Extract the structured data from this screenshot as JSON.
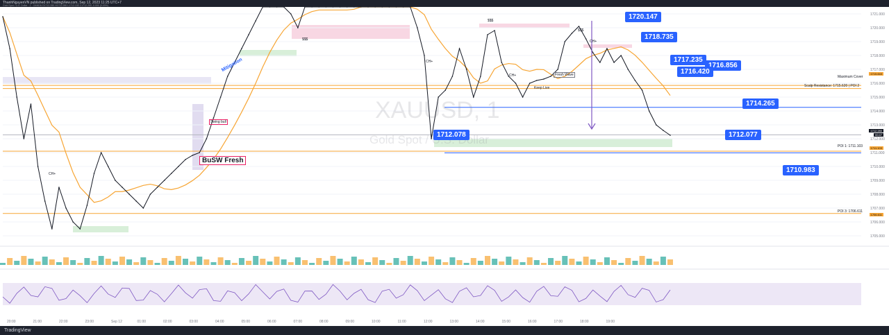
{
  "header": {
    "title": "ThanhNguyenVN published on TradingView.com, Sep 12, 2023 11:25 UTC+7",
    "symbol_line": "Gold Spot / U.S. Dollar · 1 · OANDA  O1712.280  H1712.280  L1712.150  C1712.250  -0.000 (0.00%)"
  },
  "watermark": {
    "symbol": "XAUUSD, 1",
    "name": "Gold Spot / U.S. Dollar"
  },
  "footer": {
    "brand": "TradingView"
  },
  "price_callouts": [
    {
      "label": "1720.147",
      "value": 1720.147
    },
    {
      "label": "1718.735",
      "value": 1718.735
    },
    {
      "label": "1717.235",
      "value": 1717.235
    },
    {
      "label": "1716.856",
      "value": 1716.856
    },
    {
      "label": "1716.420",
      "value": 1716.42
    },
    {
      "label": "1714.265",
      "value": 1714.265
    },
    {
      "label": "1712.078",
      "value": 1712.078
    },
    {
      "label": "1712.077",
      "value": 1712.077
    },
    {
      "label": "1710.983",
      "value": 1710.983
    }
  ],
  "level_labels": {
    "maximum_cover": "Maximum Cover",
    "scalp": "Scalp Resistance: 1715.620 | POI 2",
    "poi1": "POI 1: 1711.103",
    "poi3": "POI 3: 1706.611"
  },
  "annotations": {
    "busw": "BuSW Fresh",
    "mitigation": "Mitigation",
    "swing_bull": "Swing bull",
    "keep_live": "Keep Live",
    "fresh_wave": "Fresh Wave",
    "choch": "CH+",
    "sss": "$$$"
  },
  "scale_tags": {
    "last_price": "1712.280",
    "countdown": "00:47",
    "maximum_cover_tag": "1715.843",
    "poi1_tag": "1711.103",
    "poi3_tag": "1706.611"
  },
  "colors": {
    "candle_up": "#26a69a",
    "candle_down": "#131722",
    "ma": "#f7a533",
    "rsi": "#7e57c2",
    "callout": "#2962ff"
  },
  "chart_data": {
    "type": "line",
    "title": "XAUUSD, 1",
    "subtitle": "Gold Spot / U.S. Dollar",
    "xlabel": "",
    "ylabel": "",
    "y_axis_ticks": [
      1721.0,
      1720.0,
      1719.0,
      1718.0,
      1717.0,
      1716.0,
      1715.0,
      1714.0,
      1713.0,
      1712.0,
      1711.0,
      1710.0,
      1709.0,
      1708.0,
      1707.0,
      1706.0,
      1705.0
    ],
    "x_axis_ticks": [
      "20:00",
      "21:00",
      "22:00",
      "23:00",
      "Sep 12",
      "01:00",
      "02:00",
      "03:00",
      "04:00",
      "05:00",
      "06:00",
      "07:00",
      "08:00",
      "09:00",
      "10:00",
      "11:00",
      "12:00",
      "13:00",
      "14:00",
      "15:00",
      "16:00",
      "17:00",
      "18:00",
      "19:00"
    ],
    "ylim": [
      1704.5,
      1721.5
    ],
    "series": [
      {
        "name": "",
        "x": [
          0,
          10,
          20,
          30,
          40,
          50,
          60,
          70,
          80,
          90,
          100,
          110,
          120,
          130,
          140,
          150,
          160,
          170,
          180,
          190,
          200,
          210,
          220,
          230,
          240,
          250,
          260,
          270,
          280,
          290,
          300,
          310,
          320,
          330,
          340,
          350,
          360,
          370,
          380,
          390,
          400,
          410,
          420,
          430,
          440,
          450,
          460,
          470,
          480,
          490,
          500,
          510,
          520,
          530,
          540,
          550,
          560,
          570,
          580,
          590,
          600,
          610,
          620,
          630,
          640,
          650,
          660,
          670,
          680,
          690,
          700,
          710,
          720,
          730,
          740,
          750,
          760,
          770,
          780,
          790,
          800,
          810,
          820,
          830,
          840,
          850,
          860,
          870,
          880,
          890,
          900,
          910,
          920,
          930,
          940,
          950
        ],
        "values": [
          1720.8,
          1718.5,
          1715.0,
          1712.0,
          1714.5,
          1710.0,
          1707.5,
          1705.5,
          1708.5,
          1707.0,
          1706.0,
          1705.5,
          1707.2,
          1709.5,
          1711.0,
          1710.0,
          1709.0,
          1708.5,
          1708.0,
          1707.5,
          1707.0,
          1708.0,
          1708.5,
          1709.0,
          1709.5,
          1710.0,
          1710.5,
          1710.8,
          1711.0,
          1712.0,
          1713.5,
          1715.0,
          1716.5,
          1717.5,
          1718.5,
          1719.5,
          1720.5,
          1721.5,
          1721.5,
          1721.5,
          1721.5,
          1721.0,
          1720.0,
          1721.5,
          1721.5,
          1721.5,
          1721.5,
          1721.5,
          1721.5,
          1721.5,
          1721.5,
          1721.5,
          1721.5,
          1721.5,
          1721.5,
          1721.5,
          1721.5,
          1721.5,
          1721.5,
          1720.0,
          1718.0,
          1712.0,
          1715.0,
          1715.5,
          1716.5,
          1718.5,
          1717.0,
          1715.0,
          1716.5,
          1719.5,
          1719.8,
          1717.5,
          1716.5,
          1716.0,
          1715.0,
          1716.0,
          1716.2,
          1716.3,
          1716.5,
          1717.0,
          1719.0,
          1719.6,
          1720.1,
          1719.2,
          1718.2,
          1717.5,
          1718.5,
          1717.5,
          1718.0,
          1717.0,
          1716.2,
          1715.5,
          1714.0,
          1713.0,
          1712.6,
          1712.25
        ]
      }
    ]
  }
}
